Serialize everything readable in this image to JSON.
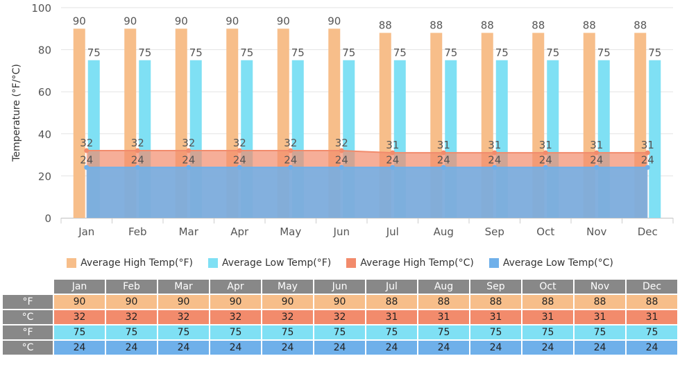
{
  "chart_data": {
    "type": "bar",
    "categories": [
      "Jan",
      "Feb",
      "Mar",
      "Apr",
      "May",
      "Jun",
      "Jul",
      "Aug",
      "Sep",
      "Oct",
      "Nov",
      "Dec"
    ],
    "ylabel": "Temperature (°F/°C)",
    "ylim": [
      0,
      100
    ],
    "yticks": [
      0,
      20,
      40,
      60,
      80,
      100
    ],
    "grid": true,
    "legend_position": "bottom",
    "series": [
      {
        "name": "Average High Temp(°F)",
        "kind": "bar",
        "color": "#f7be8a",
        "values": [
          90,
          90,
          90,
          90,
          90,
          90,
          88,
          88,
          88,
          88,
          88,
          88
        ]
      },
      {
        "name": "Average Low Temp(°F)",
        "kind": "bar",
        "color": "#7fe0f4",
        "values": [
          75,
          75,
          75,
          75,
          75,
          75,
          75,
          75,
          75,
          75,
          75,
          75
        ]
      },
      {
        "name": "Average High Temp(°C)",
        "kind": "area",
        "color": "#f28b6c",
        "values": [
          32,
          32,
          32,
          32,
          32,
          32,
          31,
          31,
          31,
          31,
          31,
          31
        ]
      },
      {
        "name": "Average Low Temp(°C)",
        "kind": "area",
        "color": "#6fb0ea",
        "values": [
          24,
          24,
          24,
          24,
          24,
          24,
          24,
          24,
          24,
          24,
          24,
          24
        ]
      }
    ]
  },
  "table": {
    "months": [
      "Jan",
      "Feb",
      "Mar",
      "Apr",
      "May",
      "Jun",
      "Jul",
      "Aug",
      "Sep",
      "Oct",
      "Nov",
      "Dec"
    ],
    "rows": [
      {
        "label": "°F",
        "color": "#f7be8a",
        "values": [
          "90",
          "90",
          "90",
          "90",
          "90",
          "90",
          "88",
          "88",
          "88",
          "88",
          "88",
          "88"
        ]
      },
      {
        "label": "°C",
        "color": "#f28b6c",
        "values": [
          "32",
          "32",
          "32",
          "32",
          "32",
          "32",
          "31",
          "31",
          "31",
          "31",
          "31",
          "31"
        ]
      },
      {
        "label": "°F",
        "color": "#7fe0f4",
        "values": [
          "75",
          "75",
          "75",
          "75",
          "75",
          "75",
          "75",
          "75",
          "75",
          "75",
          "75",
          "75"
        ]
      },
      {
        "label": "°C",
        "color": "#6fb0ea",
        "values": [
          "24",
          "24",
          "24",
          "24",
          "24",
          "24",
          "24",
          "24",
          "24",
          "24",
          "24",
          "24"
        ]
      }
    ]
  }
}
